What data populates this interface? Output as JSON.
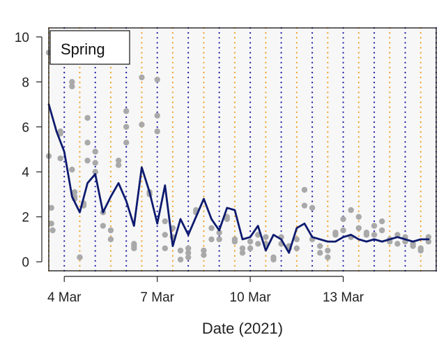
{
  "chart_data": {
    "type": "line",
    "xlabel": "Date (2021)",
    "ylabel": "",
    "ylim": [
      -0.4,
      10.4
    ],
    "xlim": [
      "2021-03-03 12:00",
      "2021-03-16 00:00"
    ],
    "y_ticks": [
      0,
      2,
      4,
      6,
      8,
      10
    ],
    "x_ticks": [
      {
        "date": "2021-03-04",
        "label": "4 Mar"
      },
      {
        "date": "2021-03-07",
        "label": "7 Mar"
      },
      {
        "date": "2021-03-10",
        "label": "10 Mar"
      },
      {
        "date": "2021-03-13",
        "label": "13 Mar"
      }
    ],
    "grid": false,
    "legend": {
      "label": "Spring",
      "placement": "top-left"
    },
    "reference_lines": {
      "description_free": true,
      "midnight_color": "#1a1aa6",
      "noon_color": "#f0a020",
      "style": "dotted"
    },
    "colors": {
      "line": "#0d1a6e",
      "points": "#a9a9a9",
      "background": "#f7f7f7"
    },
    "series": [
      {
        "type": "line",
        "x": [
          "2021-03-03 12:00",
          "2021-03-03 18:00",
          "2021-03-04 00:00",
          "2021-03-04 06:00",
          "2021-03-04 12:00",
          "2021-03-04 18:00",
          "2021-03-05 00:00",
          "2021-03-05 06:00",
          "2021-03-05 12:00",
          "2021-03-05 18:00",
          "2021-03-06 00:00",
          "2021-03-06 06:00",
          "2021-03-06 12:00",
          "2021-03-06 18:00",
          "2021-03-07 00:00",
          "2021-03-07 06:00",
          "2021-03-07 12:00",
          "2021-03-07 18:00",
          "2021-03-08 00:00",
          "2021-03-08 06:00",
          "2021-03-08 12:00",
          "2021-03-08 18:00",
          "2021-03-09 00:00",
          "2021-03-09 06:00",
          "2021-03-09 12:00",
          "2021-03-09 18:00",
          "2021-03-10 00:00",
          "2021-03-10 06:00",
          "2021-03-10 12:00",
          "2021-03-10 18:00",
          "2021-03-11 00:00",
          "2021-03-11 06:00",
          "2021-03-11 12:00",
          "2021-03-11 18:00",
          "2021-03-12 00:00",
          "2021-03-12 06:00",
          "2021-03-12 12:00",
          "2021-03-12 18:00",
          "2021-03-13 00:00",
          "2021-03-13 06:00",
          "2021-03-13 12:00",
          "2021-03-13 18:00",
          "2021-03-14 00:00",
          "2021-03-14 06:00",
          "2021-03-14 12:00",
          "2021-03-14 18:00",
          "2021-03-15 00:00",
          "2021-03-15 06:00",
          "2021-03-15 12:00",
          "2021-03-15 18:00"
        ],
        "y": [
          7.0,
          5.8,
          4.9,
          2.9,
          2.2,
          3.5,
          3.9,
          2.2,
          2.9,
          3.5,
          2.7,
          1.6,
          4.2,
          3.1,
          1.7,
          3.4,
          0.7,
          1.9,
          1.2,
          2.0,
          2.8,
          1.9,
          1.4,
          2.4,
          2.3,
          1.0,
          1.1,
          1.6,
          0.5,
          1.2,
          1.0,
          0.4,
          1.5,
          1.7,
          1.1,
          1.0,
          0.9,
          0.9,
          1.1,
          1.2,
          1.0,
          0.9,
          1.0,
          0.9,
          1.0,
          1.1,
          1.0,
          0.9,
          1.0,
          1.0
        ]
      },
      {
        "type": "scatter",
        "x": [
          "2021-03-03 12:00",
          "2021-03-03 12:00",
          "2021-03-03 14:00",
          "2021-03-03 14:00",
          "2021-03-03 15:00",
          "2021-03-03 21:00",
          "2021-03-03 21:00",
          "2021-03-03 21:00",
          "2021-03-04 06:00",
          "2021-03-04 06:00",
          "2021-03-04 06:00",
          "2021-03-04 08:00",
          "2021-03-04 08:00",
          "2021-03-04 08:00",
          "2021-03-04 12:00",
          "2021-03-04 12:00",
          "2021-03-04 15:00",
          "2021-03-04 15:00",
          "2021-03-04 18:00",
          "2021-03-04 18:00",
          "2021-03-04 18:00",
          "2021-03-05 00:00",
          "2021-03-05 00:00",
          "2021-03-05 00:00",
          "2021-03-05 06:00",
          "2021-03-05 06:00",
          "2021-03-05 12:00",
          "2021-03-05 12:00",
          "2021-03-05 18:00",
          "2021-03-05 18:00",
          "2021-03-06 00:00",
          "2021-03-06 00:00",
          "2021-03-06 00:00",
          "2021-03-06 06:00",
          "2021-03-06 06:00",
          "2021-03-06 06:00",
          "2021-03-06 12:00",
          "2021-03-06 12:00",
          "2021-03-06 18:00",
          "2021-03-06 18:00",
          "2021-03-07 00:00",
          "2021-03-07 00:00",
          "2021-03-07 00:00",
          "2021-03-07 06:00",
          "2021-03-07 06:00",
          "2021-03-07 06:00",
          "2021-03-07 12:00",
          "2021-03-07 12:00",
          "2021-03-07 18:00",
          "2021-03-07 18:00",
          "2021-03-08 00:00",
          "2021-03-08 00:00",
          "2021-03-08 00:00",
          "2021-03-08 06:00",
          "2021-03-08 06:00",
          "2021-03-08 12:00",
          "2021-03-08 12:00",
          "2021-03-08 18:00",
          "2021-03-08 18:00",
          "2021-03-09 00:00",
          "2021-03-09 00:00",
          "2021-03-09 06:00",
          "2021-03-09 06:00",
          "2021-03-09 12:00",
          "2021-03-09 12:00",
          "2021-03-09 18:00",
          "2021-03-09 18:00",
          "2021-03-10 00:00",
          "2021-03-10 00:00",
          "2021-03-10 06:00",
          "2021-03-10 06:00",
          "2021-03-10 12:00",
          "2021-03-10 12:00",
          "2021-03-10 18:00",
          "2021-03-10 18:00",
          "2021-03-11 00:00",
          "2021-03-11 00:00",
          "2021-03-11 06:00",
          "2021-03-11 06:00",
          "2021-03-11 12:00",
          "2021-03-11 12:00",
          "2021-03-11 18:00",
          "2021-03-11 18:00",
          "2021-03-12 00:00",
          "2021-03-12 00:00",
          "2021-03-12 06:00",
          "2021-03-12 06:00",
          "2021-03-12 12:00",
          "2021-03-12 12:00",
          "2021-03-12 18:00",
          "2021-03-12 18:00",
          "2021-03-13 00:00",
          "2021-03-13 00:00",
          "2021-03-13 06:00",
          "2021-03-13 06:00",
          "2021-03-13 12:00",
          "2021-03-13 12:00",
          "2021-03-13 18:00",
          "2021-03-13 18:00",
          "2021-03-14 00:00",
          "2021-03-14 00:00",
          "2021-03-14 06:00",
          "2021-03-14 06:00",
          "2021-03-14 12:00",
          "2021-03-14 12:00",
          "2021-03-14 18:00",
          "2021-03-14 18:00",
          "2021-03-15 00:00",
          "2021-03-15 00:00",
          "2021-03-15 06:00",
          "2021-03-15 06:00",
          "2021-03-15 12:00",
          "2021-03-15 12:00",
          "2021-03-15 18:00",
          "2021-03-15 18:00"
        ],
        "y": [
          9.3,
          4.7,
          2.4,
          1.7,
          1.4,
          5.8,
          5.7,
          4.6,
          8.0,
          7.8,
          4.1,
          3.1,
          2.8,
          2.9,
          0.2,
          0.2,
          2.5,
          2.6,
          6.4,
          5.3,
          4.5,
          4.4,
          4.9,
          4.0,
          1.6,
          2.2,
          1.4,
          1.0,
          4.3,
          4.5,
          6.7,
          6.0,
          5.3,
          0.7,
          0.6,
          0.8,
          8.2,
          6.1,
          3.1,
          3.0,
          8.1,
          6.5,
          5.8,
          1.2,
          0.6,
          1.8,
          1.5,
          1.1,
          0.1,
          0.5,
          0.2,
          0.4,
          0.6,
          2.3,
          2.2,
          0.3,
          0.5,
          1.5,
          1.0,
          1.0,
          1.3,
          2.0,
          1.9,
          0.9,
          1.0,
          0.4,
          0.6,
          0.9,
          0.6,
          0.8,
          1.2,
          1.1,
          0.8,
          0.1,
          0.2,
          0.8,
          1.1,
          0.7,
          0.6,
          0.6,
          1.0,
          3.2,
          2.5,
          2.4,
          1.0,
          0.7,
          0.4,
          0.2,
          0.5,
          1.2,
          1.3,
          1.4,
          1.9,
          1.1,
          2.3,
          2.0,
          1.5,
          1.2,
          1.3,
          1.2,
          1.6,
          1.8,
          1.4,
          0.9,
          1.0,
          0.8,
          1.2,
          1.1,
          0.9,
          0.7,
          0.8,
          0.6,
          0.5,
          1.1,
          0.9
        ]
      }
    ]
  }
}
